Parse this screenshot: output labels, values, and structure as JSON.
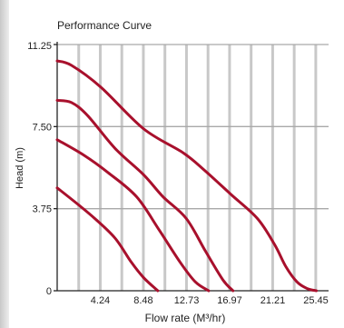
{
  "chart_data": {
    "type": "line",
    "title": "Performance Curve",
    "xlabel": "Flow rate (M³/hr)",
    "ylabel": "Head (m)",
    "xlim": [
      0,
      25.45
    ],
    "ylim": [
      0,
      11.25
    ],
    "x_ticks": [
      4.24,
      8.48,
      12.73,
      16.97,
      21.21,
      25.45
    ],
    "x_tick_labels": [
      "4.24",
      "8.48",
      "12.73",
      "16.97",
      "21.21",
      "25.45"
    ],
    "y_ticks": [
      0,
      3.75,
      7.5,
      11.25
    ],
    "y_tick_labels": [
      "0",
      "3.75",
      "7.50",
      "11.25"
    ],
    "grid": {
      "vertical": true,
      "horizontal_at_y_ticks": true
    },
    "colors": {
      "curve": "#a8102c",
      "vertical_grid": "#c8c8c8",
      "horizontal_grid": "#a9a9a9",
      "axis": "#222222"
    },
    "series": [
      {
        "x": [
          0,
          1.4,
          4.3,
          8.5,
          12.4,
          14.5,
          17.1,
          19.7,
          21.4,
          22.5,
          23.6,
          24.6,
          25.5
        ],
        "y": [
          10.5,
          10.3,
          9.3,
          7.4,
          6.3,
          5.5,
          4.4,
          3.3,
          2.1,
          1.1,
          0.4,
          0.1,
          0
        ]
      },
      {
        "x": [
          0,
          1.4,
          3.0,
          5.7,
          8.5,
          10.4,
          12.7,
          14.6,
          16.3,
          17.3
        ],
        "y": [
          8.7,
          8.6,
          8.0,
          6.5,
          5.3,
          4.3,
          3.3,
          1.8,
          0.5,
          0
        ]
      },
      {
        "x": [
          0,
          2.6,
          5.0,
          7.8,
          10.0,
          12.1,
          13.6,
          14.9
        ],
        "y": [
          6.9,
          6.2,
          5.4,
          4.3,
          2.8,
          1.3,
          0.4,
          0
        ]
      },
      {
        "x": [
          0,
          1.9,
          3.7,
          5.7,
          7.3,
          8.5,
          9.9
        ],
        "y": [
          4.7,
          4.0,
          3.3,
          2.4,
          1.3,
          0.6,
          0
        ]
      }
    ]
  }
}
